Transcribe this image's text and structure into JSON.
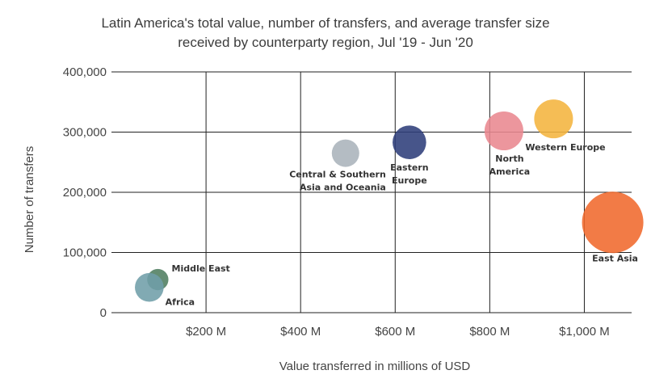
{
  "chart_data": {
    "type": "scatter",
    "title_lines": [
      "Latin America's total value, number of transfers, and average transfer size",
      "received by counterparty region, Jul '19 - Jun '20"
    ],
    "xlabel": "Value transferred in millions of USD",
    "ylabel": "Number of transfers",
    "xlim": [
      0,
      1100
    ],
    "ylim": [
      0,
      400000
    ],
    "x_ticks": [
      200,
      400,
      600,
      800,
      1000
    ],
    "x_tick_labels": [
      "$200 M",
      "$400 M",
      "$600 M",
      "$800 M",
      "$1,000 M"
    ],
    "y_ticks": [
      0,
      100000,
      200000,
      300000,
      400000
    ],
    "y_tick_labels": [
      "0",
      "100,000",
      "200,000",
      "300,000",
      "400,000"
    ],
    "grid": true,
    "points": [
      {
        "name": "Middle East",
        "label_lines": [
          "Middle East"
        ],
        "x": 98,
        "y": 55000,
        "size": 0.12,
        "color": "#4e7d60",
        "label_pos": "right"
      },
      {
        "name": "Africa",
        "label_lines": [
          "Africa"
        ],
        "x": 80,
        "y": 42000,
        "size": 0.22,
        "color": "#6f9ea8",
        "label_pos": "below-right"
      },
      {
        "name": "Central & Southern Asia and Oceania",
        "label_lines": [
          "Central & Southern",
          "Asia and Oceania"
        ],
        "x": 495,
        "y": 265000,
        "size": 0.2,
        "color": "#aab3bb",
        "label_pos": "below-left"
      },
      {
        "name": "Eastern Europe",
        "label_lines": [
          "Eastern",
          "Europe"
        ],
        "x": 630,
        "y": 283000,
        "size": 0.3,
        "color": "#2e3e7a",
        "label_pos": "below"
      },
      {
        "name": "North America",
        "label_lines": [
          "North",
          "America"
        ],
        "x": 830,
        "y": 302000,
        "size": 0.4,
        "color": "#e9888f",
        "label_pos": "below"
      },
      {
        "name": "Western Europe",
        "label_lines": [
          "Western Europe"
        ],
        "x": 935,
        "y": 322000,
        "size": 0.4,
        "color": "#f4b43d",
        "label_pos": "below-right"
      },
      {
        "name": "East Asia",
        "label_lines": [
          "East Asia"
        ],
        "x": 1060,
        "y": 150000,
        "size": 1.0,
        "color": "#f0692c",
        "label_pos": "below"
      }
    ]
  }
}
